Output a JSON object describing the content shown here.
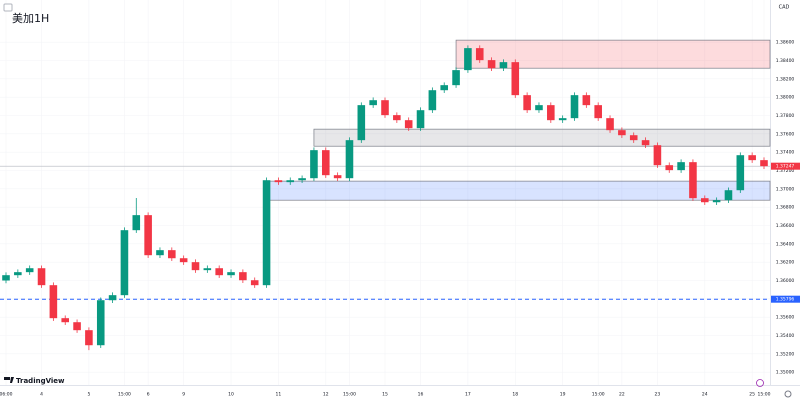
{
  "chart_data": {
    "type": "candlestick",
    "title": "美加1H",
    "currency": "CAD",
    "brand": "TradingView",
    "ylim": [
      1.3486,
      1.3906
    ],
    "yticks": [
      {
        "value": 1.386,
        "label": "1.38600"
      },
      {
        "value": 1.384,
        "label": "1.38400"
      },
      {
        "value": 1.382,
        "label": "1.38200"
      },
      {
        "value": 1.38,
        "label": "1.38000"
      },
      {
        "value": 1.378,
        "label": "1.37800"
      },
      {
        "value": 1.376,
        "label": "1.37600"
      },
      {
        "value": 1.374,
        "label": "1.37400"
      },
      {
        "value": 1.372,
        "label": "1.37200"
      },
      {
        "value": 1.37,
        "label": "1.37000"
      },
      {
        "value": 1.368,
        "label": "1.36800"
      },
      {
        "value": 1.366,
        "label": "1.36600"
      },
      {
        "value": 1.364,
        "label": "1.36400"
      },
      {
        "value": 1.362,
        "label": "1.36200"
      },
      {
        "value": 1.36,
        "label": "1.36000"
      },
      {
        "value": 1.358,
        "label": "1.35800"
      },
      {
        "value": 1.356,
        "label": "1.35600"
      },
      {
        "value": 1.354,
        "label": "1.35400"
      },
      {
        "value": 1.352,
        "label": "1.35200"
      },
      {
        "value": 1.35,
        "label": "1.35000"
      }
    ],
    "categories": [
      "06:00",
      null,
      null,
      "4",
      null,
      null,
      null,
      "5",
      null,
      null,
      "15:00",
      null,
      "6",
      null,
      null,
      "9",
      null,
      null,
      null,
      "10",
      null,
      null,
      null,
      "11",
      null,
      null,
      null,
      "12",
      null,
      "15:00",
      null,
      null,
      "15",
      null,
      null,
      "16",
      null,
      null,
      null,
      "17",
      null,
      null,
      null,
      "18",
      null,
      null,
      null,
      "19",
      null,
      null,
      "15:00",
      null,
      "22",
      null,
      null,
      "23",
      null,
      null,
      null,
      "24",
      null,
      null,
      null,
      "25",
      "15:00"
    ],
    "up_color": "#089981",
    "down_color": "#f23645",
    "ohlc": [
      [
        1.36,
        1.36088,
        1.3597,
        1.36058
      ],
      [
        1.36058,
        1.36121,
        1.36028,
        1.36091
      ],
      [
        1.36091,
        1.36164,
        1.36061,
        1.36134
      ],
      [
        1.36134,
        1.36164,
        1.35919,
        1.35949
      ],
      [
        1.35949,
        1.35979,
        1.35559,
        1.35589
      ],
      [
        1.35589,
        1.35619,
        1.35515,
        1.35545
      ],
      [
        1.35545,
        1.35575,
        1.35428,
        1.35458
      ],
      [
        1.35458,
        1.35488,
        1.3524,
        1.35294
      ],
      [
        1.35294,
        1.35815,
        1.35264,
        1.35785
      ],
      [
        1.35785,
        1.3587,
        1.35755,
        1.3584
      ],
      [
        1.3584,
        1.36579,
        1.3581,
        1.36549
      ],
      [
        1.36549,
        1.369,
        1.36519,
        1.36713
      ],
      [
        1.36713,
        1.36743,
        1.36246,
        1.36276
      ],
      [
        1.36276,
        1.36361,
        1.36246,
        1.36331
      ],
      [
        1.36331,
        1.36361,
        1.36213,
        1.36243
      ],
      [
        1.36243,
        1.36273,
        1.3617,
        1.362
      ],
      [
        1.362,
        1.3623,
        1.36083,
        1.36113
      ],
      [
        1.36113,
        1.36164,
        1.36083,
        1.36134
      ],
      [
        1.36134,
        1.36164,
        1.36028,
        1.36058
      ],
      [
        1.36058,
        1.36121,
        1.36028,
        1.36091
      ],
      [
        1.36091,
        1.36121,
        1.35973,
        1.36003
      ],
      [
        1.36003,
        1.36033,
        1.35919,
        1.35949
      ],
      [
        1.35949,
        1.37124,
        1.35919,
        1.37094
      ],
      [
        1.37094,
        1.37124,
        1.37043,
        1.37073
      ],
      [
        1.37073,
        1.37124,
        1.37043,
        1.37094
      ],
      [
        1.37094,
        1.37146,
        1.37064,
        1.37116
      ],
      [
        1.37116,
        1.37452,
        1.37086,
        1.37422
      ],
      [
        1.37422,
        1.37452,
        1.37119,
        1.37149
      ],
      [
        1.37149,
        1.37179,
        1.37086,
        1.37116
      ],
      [
        1.37116,
        1.37561,
        1.37086,
        1.37531
      ],
      [
        1.37531,
        1.37943,
        1.37501,
        1.37913
      ],
      [
        1.37913,
        1.37997,
        1.37883,
        1.37967
      ],
      [
        1.37967,
        1.37997,
        1.37774,
        1.37804
      ],
      [
        1.37804,
        1.37834,
        1.37719,
        1.37749
      ],
      [
        1.37749,
        1.37779,
        1.37632,
        1.37662
      ],
      [
        1.37662,
        1.37888,
        1.37632,
        1.37858
      ],
      [
        1.37858,
        1.38106,
        1.37828,
        1.38076
      ],
      [
        1.38076,
        1.38161,
        1.38046,
        1.38131
      ],
      [
        1.38131,
        1.38325,
        1.38101,
        1.38295
      ],
      [
        1.38295,
        1.38565,
        1.38265,
        1.38535
      ],
      [
        1.38535,
        1.38565,
        1.38374,
        1.38404
      ],
      [
        1.38404,
        1.38434,
        1.38286,
        1.38316
      ],
      [
        1.38316,
        1.38412,
        1.38286,
        1.38382
      ],
      [
        1.38382,
        1.38412,
        1.37992,
        1.38022
      ],
      [
        1.38022,
        1.38052,
        1.37828,
        1.37858
      ],
      [
        1.37858,
        1.37943,
        1.37828,
        1.37913
      ],
      [
        1.37913,
        1.37943,
        1.37719,
        1.37749
      ],
      [
        1.37749,
        1.37801,
        1.37719,
        1.37771
      ],
      [
        1.37771,
        1.38052,
        1.37741,
        1.38022
      ],
      [
        1.38022,
        1.38052,
        1.37883,
        1.37913
      ],
      [
        1.37913,
        1.37943,
        1.37741,
        1.37771
      ],
      [
        1.37771,
        1.37801,
        1.3761,
        1.3764
      ],
      [
        1.3764,
        1.3767,
        1.37555,
        1.37585
      ],
      [
        1.37585,
        1.37615,
        1.37501,
        1.37531
      ],
      [
        1.37531,
        1.37561,
        1.37446,
        1.37476
      ],
      [
        1.37476,
        1.37506,
        1.37228,
        1.37258
      ],
      [
        1.37258,
        1.37288,
        1.37174,
        1.37204
      ],
      [
        1.37204,
        1.37321,
        1.37174,
        1.37291
      ],
      [
        1.37291,
        1.37321,
        1.36868,
        1.36898
      ],
      [
        1.36898,
        1.36928,
        1.36824,
        1.36854
      ],
      [
        1.36854,
        1.36906,
        1.36824,
        1.36876
      ],
      [
        1.36876,
        1.37015,
        1.36846,
        1.36985
      ],
      [
        1.36985,
        1.37397,
        1.36955,
        1.37367
      ],
      [
        1.37367,
        1.37397,
        1.37283,
        1.37313
      ],
      [
        1.37313,
        1.37343,
        1.37217,
        1.37247
      ]
    ],
    "zones": [
      {
        "from": 38,
        "low": 1.38316,
        "high": 1.38622,
        "color": "#f23645"
      },
      {
        "from": 26,
        "low": 1.37465,
        "high": 1.37651,
        "color": "#787b86"
      },
      {
        "from": 22,
        "low": 1.36876,
        "high": 1.37084,
        "color": "#2962ff"
      }
    ],
    "hline": {
      "value": 1.35796,
      "label": "1.35796",
      "color": "#2962ff"
    }
  }
}
